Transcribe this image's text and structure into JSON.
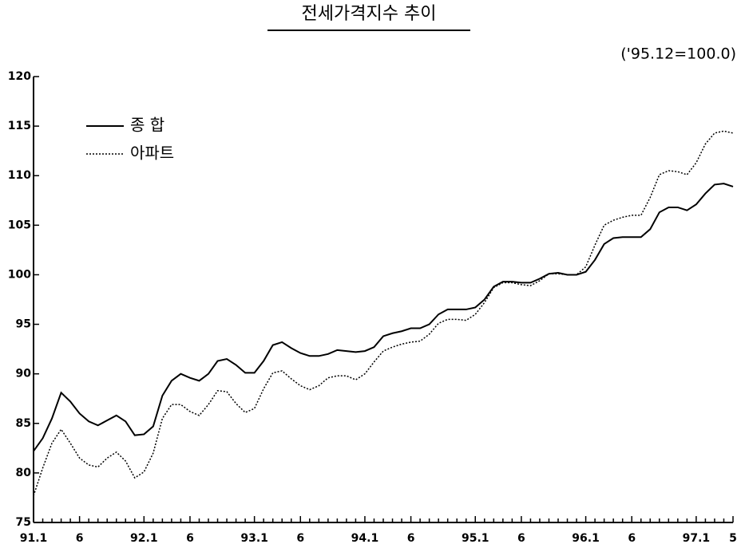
{
  "chart_data": {
    "type": "line",
    "title": "전세가격지수 추이",
    "subtitle": "('95.12=100.0)",
    "categories": [
      "91.1",
      null,
      null,
      null,
      null,
      "6",
      null,
      null,
      null,
      null,
      null,
      null,
      "92.1",
      null,
      null,
      null,
      null,
      "6",
      null,
      null,
      null,
      null,
      null,
      null,
      "93.1",
      null,
      null,
      null,
      null,
      "6",
      null,
      null,
      null,
      null,
      null,
      null,
      "94.1",
      null,
      null,
      null,
      null,
      "6",
      null,
      null,
      null,
      null,
      null,
      null,
      "95.1",
      null,
      null,
      null,
      null,
      "6",
      null,
      null,
      null,
      null,
      null,
      null,
      "96.1",
      null,
      null,
      null,
      null,
      "6",
      null,
      null,
      null,
      null,
      null,
      null,
      "97.1",
      null,
      null,
      null,
      "5"
    ],
    "series": [
      {
        "name": "종  합",
        "color": "#000000",
        "line_style": "solid",
        "values": [
          82.2,
          83.5,
          85.5,
          88.1,
          87.2,
          86.0,
          85.2,
          84.8,
          85.3,
          85.8,
          85.2,
          83.8,
          83.9,
          84.7,
          87.8,
          89.3,
          90.0,
          89.6,
          89.3,
          90.0,
          91.3,
          91.5,
          90.9,
          90.1,
          90.1,
          91.3,
          92.9,
          93.2,
          92.6,
          92.1,
          91.8,
          91.8,
          92.0,
          92.4,
          92.3,
          92.2,
          92.3,
          92.7,
          93.8,
          94.1,
          94.3,
          94.6,
          94.6,
          95.0,
          96.0,
          96.5,
          96.5,
          96.5,
          96.7,
          97.5,
          98.8,
          99.3,
          99.3,
          99.2,
          99.2,
          99.6,
          100.1,
          100.2,
          100.0,
          100.0,
          100.3,
          101.5,
          103.1,
          103.7,
          103.8,
          103.8,
          103.8,
          104.6,
          106.3,
          106.8,
          106.8,
          106.5,
          107.1,
          108.2,
          109.1,
          109.2,
          108.9
        ]
      },
      {
        "name": "아파트",
        "color": "#000000",
        "line_style": "dotted",
        "values": [
          77.7,
          80.5,
          83.0,
          84.4,
          83.0,
          81.5,
          80.8,
          80.6,
          81.5,
          82.1,
          81.2,
          79.5,
          80.1,
          82.0,
          85.5,
          86.9,
          86.9,
          86.2,
          85.8,
          86.9,
          88.3,
          88.2,
          87.0,
          86.1,
          86.5,
          88.5,
          90.1,
          90.3,
          89.5,
          88.8,
          88.4,
          88.8,
          89.6,
          89.8,
          89.8,
          89.4,
          90.0,
          91.2,
          92.3,
          92.7,
          93.0,
          93.2,
          93.3,
          94.0,
          95.1,
          95.5,
          95.5,
          95.4,
          96.0,
          97.2,
          98.7,
          99.2,
          99.2,
          99.0,
          98.9,
          99.4,
          100.1,
          100.1,
          100.0,
          100.0,
          100.8,
          103.0,
          105.0,
          105.5,
          105.8,
          106.0,
          106.0,
          107.8,
          110.1,
          110.5,
          110.4,
          110.1,
          111.3,
          113.2,
          114.3,
          114.5,
          114.3
        ]
      }
    ],
    "ylim": [
      75,
      120
    ],
    "yticks": [
      75,
      80,
      85,
      90,
      95,
      100,
      105,
      110,
      115,
      120
    ],
    "grid": false,
    "legend": "upper left"
  }
}
